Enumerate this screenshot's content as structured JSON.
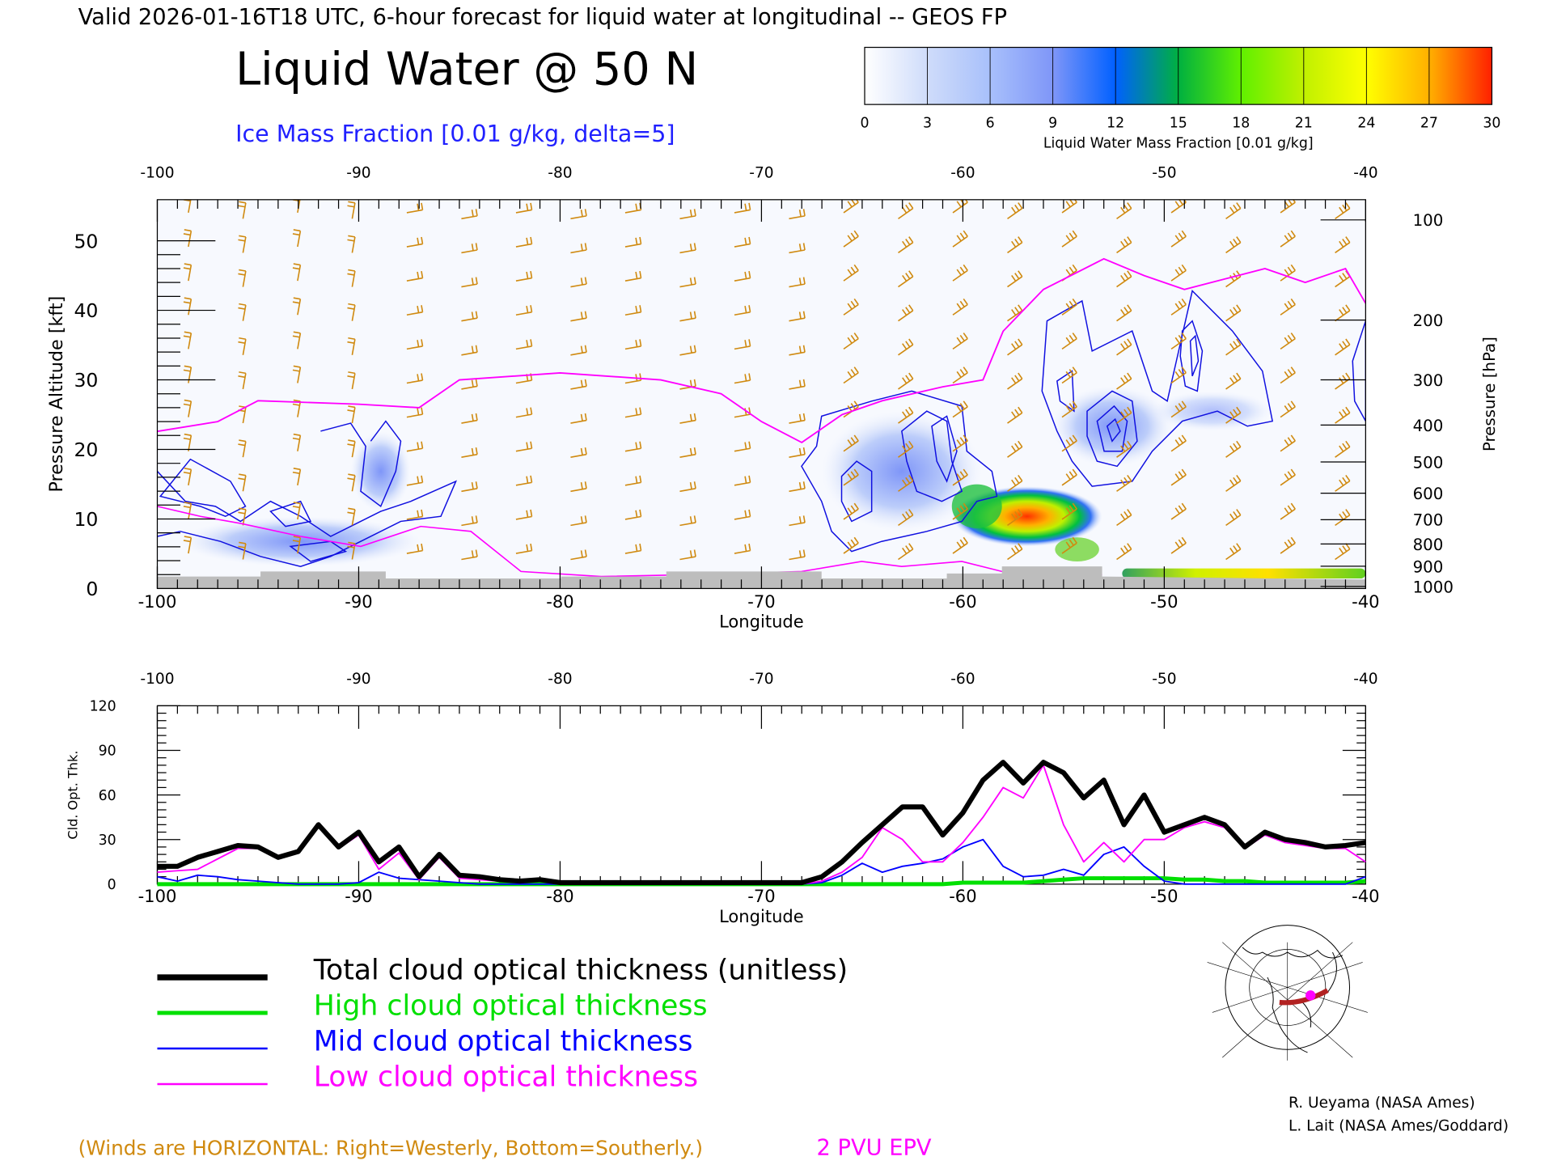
{
  "header": {
    "valid_line": "Valid 2026-01-16T18 UTC, 6-hour forecast for liquid water at longitudinal -- GEOS FP",
    "title": "Liquid Water @ 50 N",
    "ice_label": "Ice Mass Fraction [0.01 g/kg, delta=5]"
  },
  "colorbar": {
    "label": "Liquid Water Mass Fraction [0.01 g/kg]",
    "ticks": [
      "0",
      "3",
      "6",
      "9",
      "12",
      "15",
      "18",
      "21",
      "24",
      "27",
      "30"
    ],
    "colors": [
      "#ffffff",
      "#cfdcfa",
      "#a8c0fb",
      "#7f96f8",
      "#2f5ff5",
      "#0070e0",
      "#00b050",
      "#5cf000",
      "#b8f000",
      "#ffff00",
      "#ffc000",
      "#ff8c00",
      "#ff2a00"
    ]
  },
  "chart_data": [
    {
      "type": "heatmap",
      "title": "Liquid Water @ 50 N",
      "xlabel": "Longitude",
      "ylabel_left": "Pressure Altitude [kft]",
      "ylabel_right": "Pressure [hPa]",
      "xlim": [
        -100,
        -40
      ],
      "ylim": [
        0,
        55
      ],
      "x_ticks": [
        "-100",
        "-90",
        "-80",
        "-70",
        "-60",
        "-50",
        "-40"
      ],
      "y_ticks_left": [
        "0",
        "10",
        "20",
        "30",
        "40",
        "50"
      ],
      "y_ticks_right": [
        {
          "label": "100",
          "kft": 53.0
        },
        {
          "label": "200",
          "kft": 38.6
        },
        {
          "label": "300",
          "kft": 30.0
        },
        {
          "label": "400",
          "kft": 23.5
        },
        {
          "label": "500",
          "kft": 18.2
        },
        {
          "label": "600",
          "kft": 13.7
        },
        {
          "label": "700",
          "kft": 9.9
        },
        {
          "label": "800",
          "kft": 6.4
        },
        {
          "label": "900",
          "kft": 3.2
        },
        {
          "label": "1000",
          "kft": 0.3
        }
      ],
      "epv_2pvu": {
        "lon": [
          -100,
          -97,
          -95,
          -90,
          -87,
          -85,
          -80,
          -75,
          -72,
          -70,
          -68,
          -66,
          -64,
          -61,
          -59,
          -58,
          -56,
          -53,
          -51,
          -49,
          -47,
          -45,
          -43,
          -41,
          -40
        ],
        "kft": [
          22.6,
          24,
          27,
          26.5,
          26,
          30,
          31,
          30,
          28,
          24,
          21,
          25,
          27,
          29,
          30,
          37,
          43,
          47.4,
          45,
          43,
          44.5,
          46,
          44,
          46,
          41
        ]
      },
      "liquid_water_max": {
        "lon": -57,
        "kft": 10,
        "value": 30
      }
    },
    {
      "type": "line",
      "xlabel": "Longitude",
      "ylabel": "Cld. Opt. Thk.",
      "xlim": [
        -100,
        -40
      ],
      "ylim": [
        0,
        120
      ],
      "x_ticks": [
        "-100",
        "-90",
        "-80",
        "-70",
        "-60",
        "-50",
        "-40"
      ],
      "y_ticks": [
        "0",
        "30",
        "60",
        "90",
        "120"
      ],
      "x": [
        -100,
        -99,
        -98,
        -97,
        -96,
        -95,
        -94,
        -93,
        -92,
        -91,
        -90,
        -89,
        -88,
        -87,
        -86,
        -85,
        -84,
        -83,
        -82,
        -81,
        -80,
        -79,
        -78,
        -77,
        -76,
        -75,
        -74,
        -73,
        -72,
        -71,
        -70,
        -69,
        -68,
        -67,
        -66,
        -65,
        -64,
        -63,
        -62,
        -61,
        -60,
        -59,
        -58,
        -57,
        -56,
        -55,
        -54,
        -53,
        -52,
        -51,
        -50,
        -49,
        -48,
        -47,
        -46,
        -45,
        -44,
        -43,
        -42,
        -41,
        -40
      ],
      "series": [
        {
          "name": "Total cloud optical thickness (unitless)",
          "color": "#000000",
          "width": 5,
          "values": [
            12,
            12,
            18,
            22,
            26,
            25,
            18,
            22,
            40,
            25,
            35,
            15,
            25,
            5,
            20,
            6,
            5,
            3,
            2,
            3,
            1,
            1,
            1,
            1,
            1,
            1,
            1,
            1,
            1,
            1,
            1,
            1,
            1,
            5,
            15,
            28,
            40,
            52,
            52,
            33,
            48,
            70,
            82,
            68,
            82,
            75,
            58,
            70,
            40,
            60,
            35,
            40,
            45,
            40,
            25,
            35,
            30,
            28,
            25,
            26,
            28
          ]
        },
        {
          "name": "High cloud optical thickness",
          "color": "#00e000",
          "width": 4,
          "values": [
            0,
            0,
            0,
            0,
            0,
            0,
            0,
            0,
            0,
            0,
            0,
            0,
            0,
            0,
            0,
            0,
            0,
            0,
            0,
            0,
            0,
            0,
            0,
            0,
            0,
            0,
            0,
            0,
            0,
            0,
            0,
            0,
            0,
            0,
            0,
            0,
            0,
            0,
            0,
            0,
            1,
            1,
            1,
            1,
            2,
            3,
            4,
            4,
            4,
            4,
            4,
            3,
            3,
            2,
            2,
            1,
            1,
            1,
            1,
            1,
            2
          ]
        },
        {
          "name": "Mid cloud optical thickness",
          "color": "#0000ff",
          "width": 1.5,
          "values": [
            5,
            2,
            6,
            5,
            3,
            2,
            1,
            0,
            0,
            0,
            1,
            8,
            4,
            3,
            2,
            1,
            0,
            0,
            0,
            0,
            0,
            0,
            0,
            0,
            0,
            0,
            0,
            0,
            0,
            0,
            0,
            0,
            0,
            1,
            6,
            14,
            8,
            12,
            14,
            17,
            25,
            30,
            12,
            5,
            6,
            10,
            6,
            20,
            25,
            12,
            2,
            0,
            0,
            0,
            0,
            0,
            0,
            0,
            0,
            0,
            5
          ]
        },
        {
          "name": "Low cloud optical thickness",
          "color": "#ff00ff",
          "width": 1.5,
          "values": [
            8,
            9,
            10,
            17,
            24,
            24,
            17,
            21,
            39,
            24,
            33,
            10,
            21,
            3,
            18,
            4,
            3,
            2,
            1,
            2,
            1,
            0,
            0,
            0,
            0,
            0,
            0,
            0,
            0,
            0,
            0,
            0,
            0,
            2,
            8,
            18,
            38,
            30,
            15,
            15,
            28,
            45,
            65,
            58,
            80,
            40,
            15,
            28,
            15,
            30,
            30,
            38,
            42,
            38,
            24,
            33,
            28,
            26,
            24,
            24,
            15
          ]
        }
      ]
    }
  ],
  "footer": {
    "winds_note": "(Winds are HORIZONTAL: Right=Westerly, Bottom=Southerly.)",
    "epv_label": "2 PVU EPV",
    "credit1": "R. Ueyama (NASA Ames)",
    "credit2": "L. Lait (NASA Ames/Goddard)"
  }
}
